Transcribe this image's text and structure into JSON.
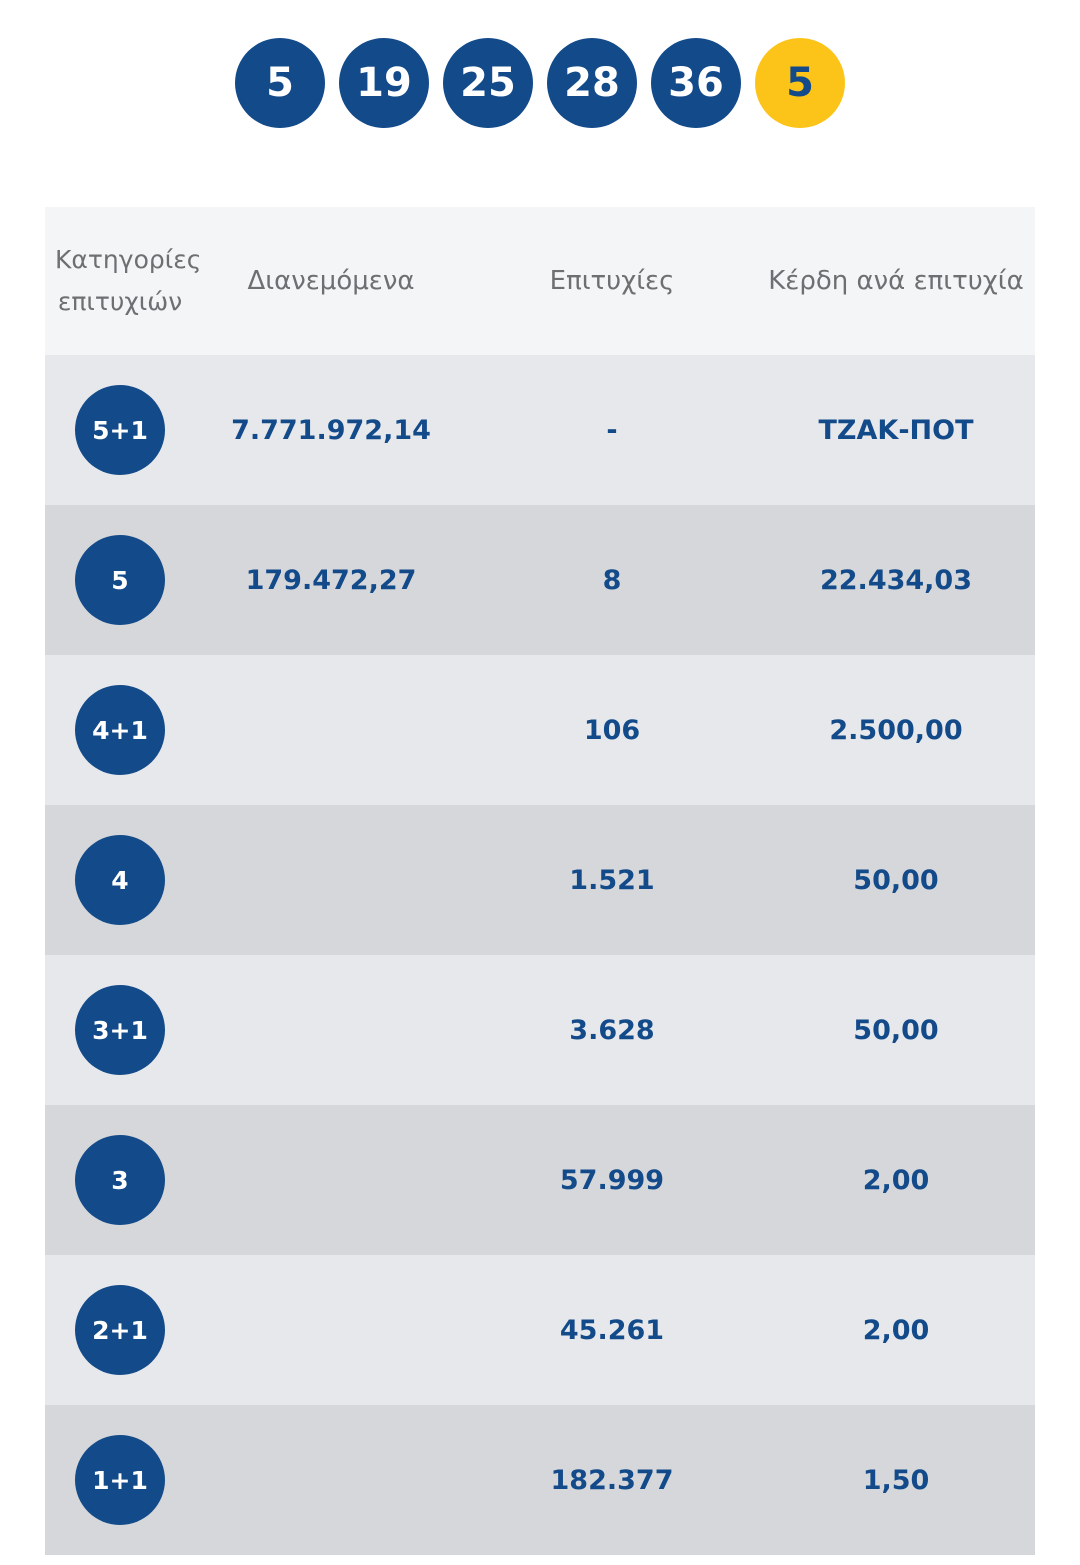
{
  "draw": {
    "numbers": [
      "5",
      "19",
      "25",
      "28",
      "36"
    ],
    "bonus": "5"
  },
  "table": {
    "headers": [
      "Κατηγορίες επιτυχιών",
      "Διανεμόμενα",
      "Επιτυχίες",
      "Κέρδη ανά επιτυχία"
    ],
    "rows": [
      [
        "5+1",
        "7.771.972,14",
        "-",
        "ΤΖΑΚ-ΠΟΤ"
      ],
      [
        "5",
        "179.472,27",
        "8",
        "22.434,03"
      ],
      [
        "4+1",
        null,
        "106",
        "2.500,00"
      ],
      [
        "4",
        null,
        "1.521",
        "50,00"
      ],
      [
        "3+1",
        null,
        "3.628",
        "50,00"
      ],
      [
        "3",
        null,
        "57.999",
        "2,00"
      ],
      [
        "2+1",
        null,
        "45.261",
        "2,00"
      ],
      [
        "1+1",
        null,
        "182.377",
        "1,50"
      ]
    ]
  }
}
